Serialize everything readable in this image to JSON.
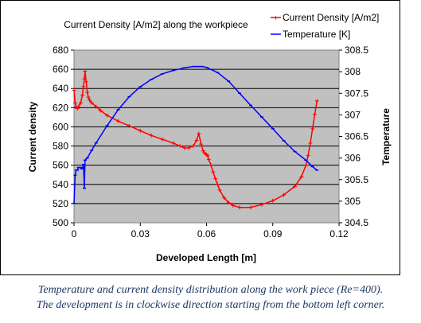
{
  "chart_data": {
    "type": "line",
    "title": "Current Density [A/m2] along the workpiece",
    "xlabel": "Developed Length [m]",
    "ylabel": "Current density",
    "y2label": "Temperature",
    "xlim": [
      0,
      0.12
    ],
    "ylim": [
      500,
      680
    ],
    "y2lim": [
      304.5,
      308.5
    ],
    "x_ticks": [
      "0",
      "0.03",
      "0.06",
      "0.09",
      "0.12"
    ],
    "y_ticks": [
      "500",
      "520",
      "540",
      "560",
      "580",
      "600",
      "620",
      "640",
      "660",
      "680"
    ],
    "y2_ticks": [
      "304.5",
      "305",
      "305.5",
      "306",
      "306.5",
      "307",
      "307.5",
      "308",
      "308.5"
    ],
    "grid": true,
    "plot_background": "#c0c0c0",
    "legend_position": "top-right",
    "series": [
      {
        "name": "Current Density [A/m2]",
        "axis": "left",
        "color": "#ff0000",
        "marker": "plus",
        "x": [
          0.0,
          0.0005,
          0.001,
          0.0015,
          0.002,
          0.003,
          0.0038,
          0.0043,
          0.0047,
          0.005,
          0.0055,
          0.006,
          0.0065,
          0.007,
          0.008,
          0.01,
          0.012,
          0.015,
          0.02,
          0.025,
          0.03,
          0.035,
          0.04,
          0.045,
          0.048,
          0.05,
          0.052,
          0.054,
          0.0555,
          0.0565,
          0.0575,
          0.0585,
          0.059,
          0.06,
          0.0605,
          0.061,
          0.062,
          0.063,
          0.064,
          0.065,
          0.066,
          0.068,
          0.07,
          0.072,
          0.075,
          0.08,
          0.085,
          0.09,
          0.095,
          0.1,
          0.103,
          0.105,
          0.106,
          0.107,
          0.108,
          0.109,
          0.11
        ],
        "y": [
          638,
          625,
          621,
          619,
          621,
          625,
          633,
          642,
          650,
          658,
          647,
          636,
          631,
          628,
          625,
          621,
          617,
          612,
          606,
          601,
          596,
          591,
          587,
          583,
          580,
          578,
          578,
          580,
          586,
          593,
          582,
          575,
          573,
          571,
          570,
          566,
          560,
          553,
          546,
          540,
          534,
          526,
          521,
          518,
          516,
          516,
          519,
          523,
          529,
          538,
          548,
          560,
          570,
          583,
          598,
          613,
          627
        ]
      },
      {
        "name": "Temperature [K]",
        "axis": "right",
        "color": "#0000ff",
        "marker": "dash",
        "x": [
          0.0,
          0.0005,
          0.001,
          0.0015,
          0.002,
          0.003,
          0.0035,
          0.004,
          0.0043,
          0.0047,
          0.005,
          0.006,
          0.008,
          0.01,
          0.015,
          0.02,
          0.025,
          0.03,
          0.035,
          0.04,
          0.045,
          0.05,
          0.054,
          0.056,
          0.058,
          0.06,
          0.065,
          0.07,
          0.075,
          0.08,
          0.085,
          0.09,
          0.095,
          0.1,
          0.105,
          0.108,
          0.11
        ],
        "y": [
          304.95,
          305.6,
          305.72,
          305.72,
          305.78,
          305.78,
          305.75,
          305.78,
          305.85,
          305.3,
          305.95,
          306.0,
          306.18,
          306.35,
          306.75,
          307.12,
          307.42,
          307.65,
          307.82,
          307.95,
          308.03,
          308.09,
          308.12,
          308.12,
          308.12,
          308.1,
          307.98,
          307.78,
          307.5,
          307.22,
          306.95,
          306.68,
          306.4,
          306.15,
          305.95,
          305.8,
          305.72
        ]
      }
    ]
  },
  "caption": {
    "line1": "Temperature and current density distribution along the work piece (Re=400).",
    "line2": "The development is in clockwise direction starting from the bottom left corner."
  }
}
